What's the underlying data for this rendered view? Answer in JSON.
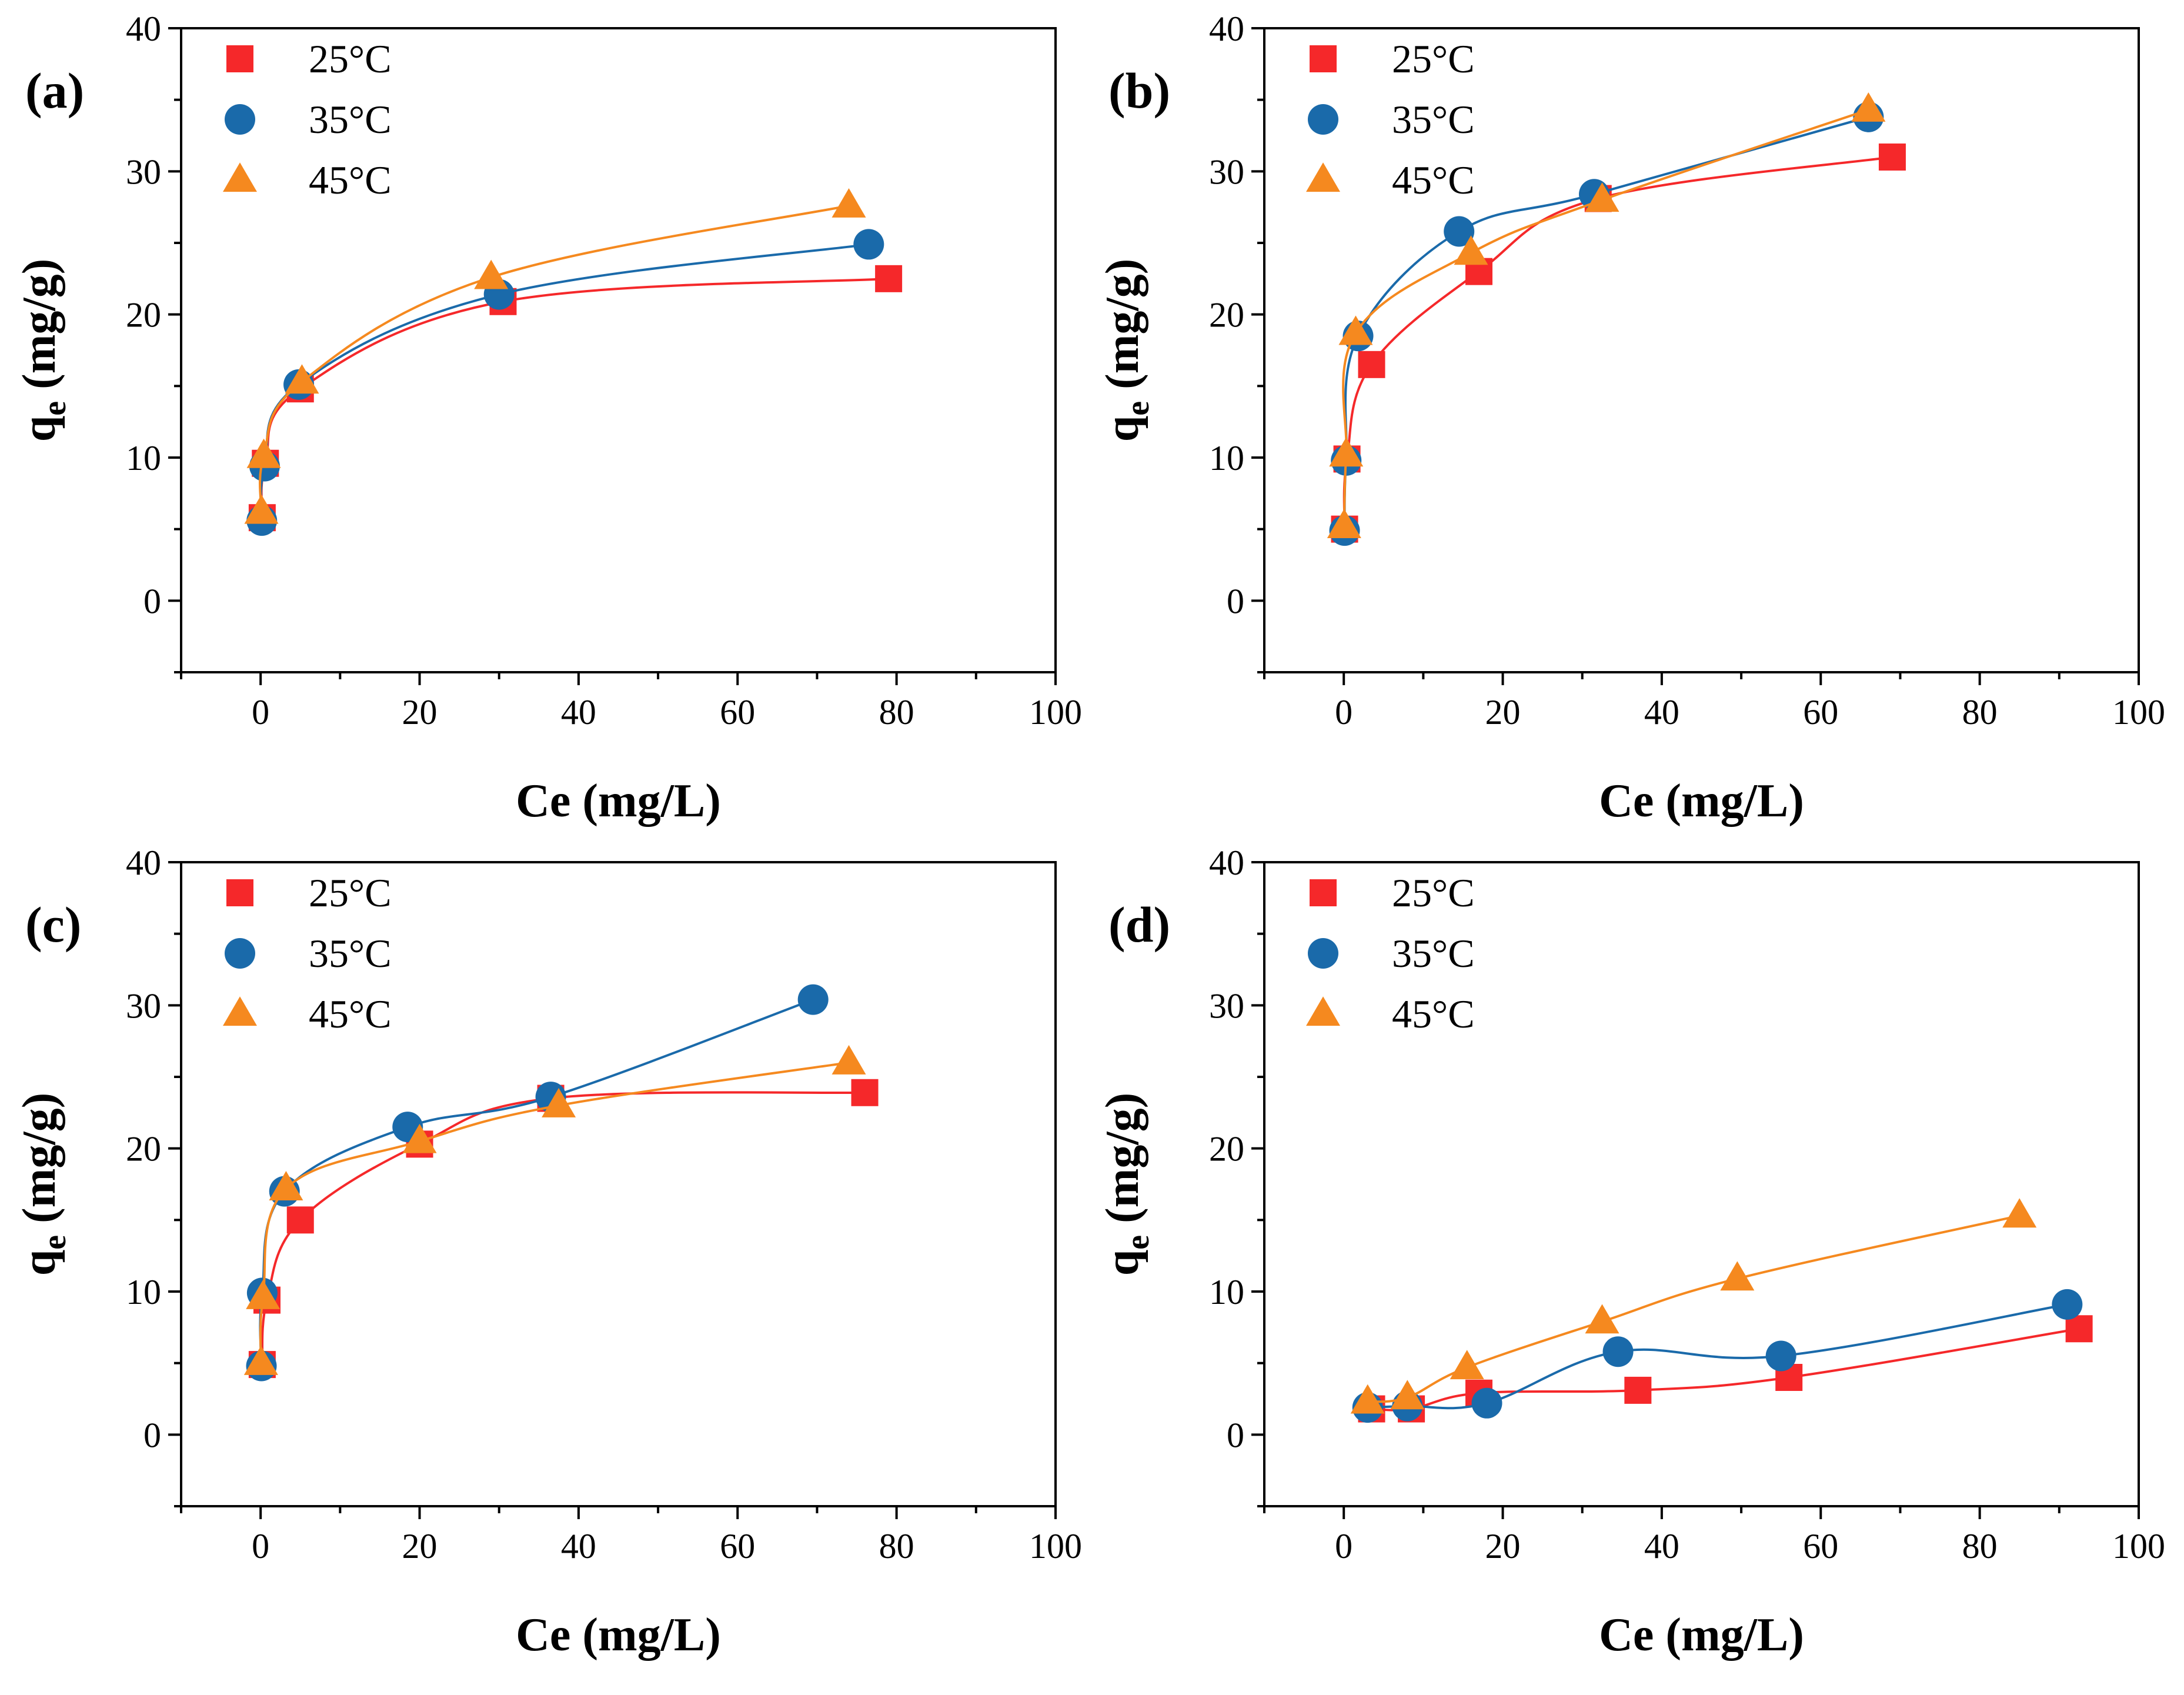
{
  "colors": {
    "25C": "#f5282a",
    "35C": "#1a6aaa",
    "45C": "#f5891f"
  },
  "chart_data": [
    {
      "id": "a",
      "type": "scatter",
      "panel_label": "(a)",
      "xlabel": "Ce (mg/L)",
      "ylabel_main": "q",
      "ylabel_sub": "e",
      "ylabel_unit": " (mg/g)",
      "xlim": [
        -10,
        100
      ],
      "ylim": [
        -5,
        40
      ],
      "xticks": [
        0,
        20,
        40,
        60,
        80,
        100
      ],
      "yticks": [
        0,
        10,
        20,
        30,
        40
      ],
      "legend_position": "top-left",
      "series": [
        {
          "name": "25°C",
          "color_key": "25C",
          "marker": "square",
          "x": [
            0.2,
            0.6,
            5,
            30.5,
            79
          ],
          "y": [
            5.8,
            9.6,
            14.8,
            20.9,
            22.5
          ]
        },
        {
          "name": "35°C",
          "color_key": "35C",
          "marker": "circle",
          "x": [
            0.15,
            0.5,
            4.8,
            30,
            76.5
          ],
          "y": [
            5.6,
            9.4,
            15.1,
            21.4,
            24.9
          ]
        },
        {
          "name": "45°C",
          "color_key": "45C",
          "marker": "triangle",
          "x": [
            0.1,
            0.4,
            5.2,
            29,
            74
          ],
          "y": [
            6.2,
            10.1,
            15.3,
            22.6,
            27.6
          ]
        }
      ]
    },
    {
      "id": "b",
      "type": "scatter",
      "panel_label": "(b)",
      "xlabel": "Ce (mg/L)",
      "ylabel_main": "q",
      "ylabel_sub": "e",
      "ylabel_unit": " (mg/g)",
      "xlim": [
        -10,
        100
      ],
      "ylim": [
        -5,
        40
      ],
      "xticks": [
        0,
        20,
        40,
        60,
        80,
        100
      ],
      "yticks": [
        0,
        10,
        20,
        30,
        40
      ],
      "legend_position": "top-left",
      "series": [
        {
          "name": "25°C",
          "color_key": "25C",
          "marker": "square",
          "x": [
            0.1,
            0.4,
            3.5,
            17,
            32,
            69
          ],
          "y": [
            5.0,
            9.9,
            16.5,
            23.0,
            28.1,
            31.0
          ]
        },
        {
          "name": "35°C",
          "color_key": "35C",
          "marker": "circle",
          "x": [
            0.1,
            0.3,
            1.8,
            14.5,
            31.5,
            66
          ],
          "y": [
            4.9,
            9.8,
            18.5,
            25.8,
            28.4,
            33.8
          ]
        },
        {
          "name": "45°C",
          "color_key": "45C",
          "marker": "triangle",
          "x": [
            0.05,
            0.3,
            1.5,
            16,
            32.5,
            66
          ],
          "y": [
            5.2,
            10.2,
            18.7,
            24.3,
            28.0,
            34.3
          ]
        }
      ]
    },
    {
      "id": "c",
      "type": "scatter",
      "panel_label": "(c)",
      "xlabel": "Ce (mg/L)",
      "ylabel_main": "q",
      "ylabel_sub": "e",
      "ylabel_unit": " (mg/g)",
      "xlim": [
        -10,
        100
      ],
      "ylim": [
        -5,
        40
      ],
      "xticks": [
        0,
        20,
        40,
        60,
        80,
        100
      ],
      "yticks": [
        0,
        10,
        20,
        30,
        40
      ],
      "legend_position": "top-left",
      "series": [
        {
          "name": "25°C",
          "color_key": "25C",
          "marker": "square",
          "x": [
            0.2,
            0.8,
            5,
            20,
            36.5,
            76
          ],
          "y": [
            4.9,
            9.4,
            15.0,
            20.3,
            23.5,
            23.9
          ]
        },
        {
          "name": "35°C",
          "color_key": "35C",
          "marker": "circle",
          "x": [
            0.1,
            0.2,
            3,
            18.5,
            36.5,
            69.5
          ],
          "y": [
            4.8,
            9.9,
            17.0,
            21.5,
            23.6,
            30.4
          ]
        },
        {
          "name": "45°C",
          "color_key": "45C",
          "marker": "triangle",
          "x": [
            0.05,
            0.3,
            3.2,
            20,
            37.5,
            74
          ],
          "y": [
            5.0,
            9.6,
            17.2,
            20.5,
            23.0,
            26.0
          ]
        }
      ]
    },
    {
      "id": "d",
      "type": "scatter",
      "panel_label": "(d)",
      "xlabel": "Ce (mg/L)",
      "ylabel_main": "q",
      "ylabel_sub": "e",
      "ylabel_unit": " (mg/g)",
      "xlim": [
        -10,
        100
      ],
      "ylim": [
        -5,
        40
      ],
      "xticks": [
        0,
        20,
        40,
        60,
        80,
        100
      ],
      "yticks": [
        0,
        10,
        20,
        30,
        40
      ],
      "legend_position": "top-left",
      "series": [
        {
          "name": "25°C",
          "color_key": "25C",
          "marker": "square",
          "x": [
            3.5,
            8.5,
            17,
            37,
            56,
            92.5
          ],
          "y": [
            1.8,
            1.8,
            2.9,
            3.1,
            4.0,
            7.4
          ]
        },
        {
          "name": "35°C",
          "color_key": "35C",
          "marker": "circle",
          "x": [
            3,
            8,
            18,
            34.5,
            55,
            91
          ],
          "y": [
            1.9,
            2.0,
            2.2,
            5.8,
            5.5,
            9.1
          ]
        },
        {
          "name": "45°C",
          "color_key": "45C",
          "marker": "triangle",
          "x": [
            3,
            8,
            15.5,
            32.5,
            49.5,
            85
          ],
          "y": [
            2.3,
            2.6,
            4.7,
            7.9,
            10.9,
            15.3
          ]
        }
      ]
    }
  ]
}
